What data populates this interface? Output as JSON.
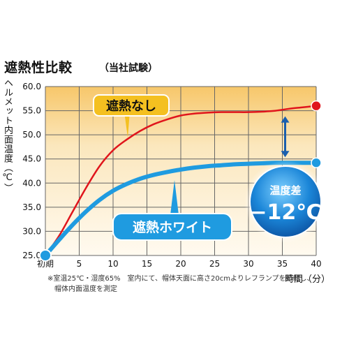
{
  "header": {
    "title": "遮熱性比較",
    "subtitle": "（当社試験）"
  },
  "notes": {
    "line1": "※室温25℃・湿度65%　室内にて、帽体天面に高さ20cmよりレフランプを照射し、",
    "line2": "帽体内面温度を測定"
  },
  "callouts": {
    "no_shield": "遮熱なし",
    "white_shield": "遮熱ホワイト",
    "diff_label": "温度差",
    "diff_value": "−12℃"
  },
  "chart_data": {
    "type": "line",
    "title": "遮熱性比較",
    "subtitle": "（当社試験）",
    "xlabel": "時間（分）",
    "ylabel": "ヘルメット内面温度（℃）",
    "xlim": [
      0,
      40
    ],
    "ylim": [
      25.0,
      60.0
    ],
    "x_ticks": [
      0,
      5,
      10,
      15,
      20,
      25,
      30,
      35,
      40
    ],
    "x_tick_labels": [
      "初期",
      "5",
      "10",
      "15",
      "20",
      "25",
      "30",
      "35",
      "40"
    ],
    "y_ticks": [
      25.0,
      30.0,
      35.0,
      40.0,
      45.0,
      50.0,
      55.0,
      60.0
    ],
    "y_tick_labels": [
      "25.0",
      "30.0",
      "35.0",
      "40.0",
      "45.0",
      "50.0",
      "55.0",
      "60.0"
    ],
    "grid": true,
    "series": [
      {
        "name": "遮熱なし",
        "color": "#e0151c",
        "x": [
          0,
          2,
          4,
          6,
          8,
          10,
          12,
          14,
          16,
          18,
          20,
          22,
          24,
          26,
          28,
          30,
          32,
          34,
          36,
          38,
          40
        ],
        "values": [
          25.0,
          29.0,
          34.0,
          39.0,
          43.5,
          46.8,
          49.0,
          50.8,
          52.2,
          53.2,
          54.0,
          54.4,
          54.6,
          54.7,
          54.7,
          54.7,
          54.8,
          55.0,
          55.4,
          55.7,
          56.0
        ]
      },
      {
        "name": "遮熱ホワイト",
        "color": "#1f9be0",
        "x": [
          0,
          2,
          4,
          6,
          8,
          10,
          12,
          14,
          16,
          18,
          20,
          22,
          24,
          26,
          28,
          30,
          32,
          34,
          36,
          38,
          40
        ],
        "values": [
          25.0,
          28.2,
          31.3,
          34.1,
          36.5,
          38.4,
          39.8,
          40.9,
          41.7,
          42.3,
          42.8,
          43.2,
          43.5,
          43.7,
          43.9,
          44.0,
          44.1,
          44.2,
          44.2,
          44.2,
          44.2
        ]
      }
    ],
    "annotation": {
      "label": "温度差",
      "value": "−12℃",
      "at_x": 35
    }
  }
}
